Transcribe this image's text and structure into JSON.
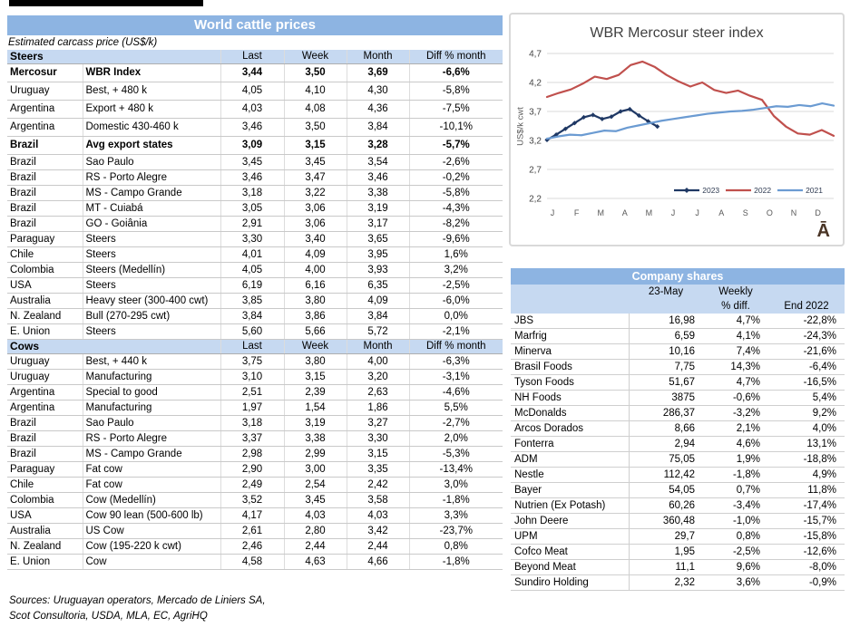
{
  "colors": {
    "header_blue": "#8DB4E2",
    "subheader_blue": "#C6D9F1",
    "series_2023": "#1F3864",
    "series_2022": "#C0504D",
    "series_2021": "#6B9BD2",
    "grid_gray": "#D9D9D9",
    "chart_text": "#595959",
    "watermark_brown": "#4A3526"
  },
  "cattle": {
    "title": "World cattle prices",
    "subtitle": "Estimated carcass price (US$/k)",
    "columns": [
      "Last",
      "Week",
      "Month",
      "Diff % month"
    ],
    "sections": [
      {
        "name": "Steers",
        "rows": [
          {
            "region": "Mercosur",
            "desc": "WBR Index",
            "last": "3,44",
            "week": "3,50",
            "month": "3,69",
            "diff": "-6,6%",
            "bold": true
          },
          {
            "region": "Uruguay",
            "desc": "Best, + 480 k",
            "last": "4,05",
            "week": "4,10",
            "month": "4,30",
            "diff": "-5,8%"
          },
          {
            "region": "Argentina",
            "desc": "Export + 480 k",
            "last": "4,03",
            "week": "4,08",
            "month": "4,36",
            "diff": "-7,5%"
          },
          {
            "region": "Argentina",
            "desc": "Domestic 430-460 k",
            "last": "3,46",
            "week": "3,50",
            "month": "3,84",
            "diff": "-10,1%"
          },
          {
            "region": "Brazil",
            "desc": "Avg export states",
            "last": "3,09",
            "week": "3,15",
            "month": "3,28",
            "diff": "-5,7%",
            "bold": true
          },
          {
            "region": "Brazil",
            "desc": "Sao Paulo",
            "last": "3,45",
            "week": "3,45",
            "month": "3,54",
            "diff": "-2,6%"
          },
          {
            "region": "Brazil",
            "desc": "RS - Porto Alegre",
            "last": "3,46",
            "week": "3,47",
            "month": "3,46",
            "diff": "-0,2%"
          },
          {
            "region": "Brazil",
            "desc": "MS - Campo Grande",
            "last": "3,18",
            "week": "3,22",
            "month": "3,38",
            "diff": "-5,8%"
          },
          {
            "region": "Brazil",
            "desc": "MT - Cuiabá",
            "last": "3,05",
            "week": "3,06",
            "month": "3,19",
            "diff": "-4,3%"
          },
          {
            "region": "Brazil",
            "desc": "GO - Goiânia",
            "last": "2,91",
            "week": "3,06",
            "month": "3,17",
            "diff": "-8,2%"
          },
          {
            "region": "Paraguay",
            "desc": "Steers",
            "last": "3,30",
            "week": "3,40",
            "month": "3,65",
            "diff": "-9,6%"
          },
          {
            "region": "Chile",
            "desc": "Steers",
            "last": "4,01",
            "week": "4,09",
            "month": "3,95",
            "diff": "1,6%"
          },
          {
            "region": "Colombia",
            "desc": "Steers (Medellín)",
            "last": "4,05",
            "week": "4,00",
            "month": "3,93",
            "diff": "3,2%"
          },
          {
            "region": "USA",
            "desc": "Steers",
            "last": "6,19",
            "week": "6,16",
            "month": "6,35",
            "diff": "-2,5%"
          },
          {
            "region": "Australia",
            "desc": "Heavy steer (300-400 cwt)",
            "last": "3,85",
            "week": "3,80",
            "month": "4,09",
            "diff": "-6,0%"
          },
          {
            "region": "N. Zealand",
            "desc": "Bull (270-295 cwt)",
            "last": "3,84",
            "week": "3,86",
            "month": "3,84",
            "diff": "0,0%"
          },
          {
            "region": "E. Union",
            "desc": "Steers",
            "last": "5,60",
            "week": "5,66",
            "month": "5,72",
            "diff": "-2,1%"
          }
        ]
      },
      {
        "name": "Cows",
        "rows": [
          {
            "region": "Uruguay",
            "desc": "Best, + 440 k",
            "last": "3,75",
            "week": "3,80",
            "month": "4,00",
            "diff": "-6,3%"
          },
          {
            "region": "Uruguay",
            "desc": "Manufacturing",
            "last": "3,10",
            "week": "3,15",
            "month": "3,20",
            "diff": "-3,1%"
          },
          {
            "region": "Argentina",
            "desc": "Special to good",
            "last": "2,51",
            "week": "2,39",
            "month": "2,63",
            "diff": "-4,6%"
          },
          {
            "region": "Argentina",
            "desc": "Manufacturing",
            "last": "1,97",
            "week": "1,54",
            "month": "1,86",
            "diff": "5,5%"
          },
          {
            "region": "Brazil",
            "desc": "Sao Paulo",
            "last": "3,18",
            "week": "3,19",
            "month": "3,27",
            "diff": "-2,7%"
          },
          {
            "region": "Brazil",
            "desc": "RS - Porto Alegre",
            "last": "3,37",
            "week": "3,38",
            "month": "3,30",
            "diff": "2,0%"
          },
          {
            "region": "Brazil",
            "desc": "MS - Campo Grande",
            "last": "2,98",
            "week": "2,99",
            "month": "3,15",
            "diff": "-5,3%"
          },
          {
            "region": "Paraguay",
            "desc": "Fat cow",
            "last": "2,90",
            "week": "3,00",
            "month": "3,35",
            "diff": "-13,4%"
          },
          {
            "region": "Chile",
            "desc": "Fat cow",
            "last": "2,49",
            "week": "2,54",
            "month": "2,42",
            "diff": "3,0%"
          },
          {
            "region": "Colombia",
            "desc": "Cow (Medellín)",
            "last": "3,52",
            "week": "3,45",
            "month": "3,58",
            "diff": "-1,8%"
          },
          {
            "region": "USA",
            "desc": "Cow 90 lean (500-600 lb)",
            "last": "4,17",
            "week": "4,03",
            "month": "4,03",
            "diff": "3,3%"
          },
          {
            "region": "Australia",
            "desc": "US Cow",
            "last": "2,61",
            "week": "2,80",
            "month": "3,42",
            "diff": "-23,7%"
          },
          {
            "region": "N. Zealand",
            "desc": "Cow (195-220 k cwt)",
            "last": "2,46",
            "week": "2,44",
            "month": "2,44",
            "diff": "0,8%"
          },
          {
            "region": "E. Union",
            "desc": "Cow",
            "last": "4,58",
            "week": "4,63",
            "month": "4,66",
            "diff": "-1,8%"
          }
        ]
      }
    ],
    "sources": [
      "Sources: Uruguayan operators, Mercado de Liniers SA,",
      "Scot Consultoria, USDA, MLA, EC, AgriHQ"
    ]
  },
  "chart_data": {
    "type": "line",
    "title": "WBR Mercosur steer index",
    "xlabel": "",
    "ylabel": "US$/k cwt",
    "ylim": [
      2.2,
      4.7
    ],
    "grid": true,
    "legend_position": "inside-bottom-right",
    "yticks": [
      {
        "v": 4.7,
        "label": "4,7"
      },
      {
        "v": 4.2,
        "label": "4,2"
      },
      {
        "v": 3.7,
        "label": "3,7"
      },
      {
        "v": 3.2,
        "label": "3,2"
      },
      {
        "v": 2.7,
        "label": "2,7"
      },
      {
        "v": 2.2,
        "label": "2,2"
      }
    ],
    "x_labels": [
      "J",
      "F",
      "M",
      "A",
      "M",
      "J",
      "J",
      "A",
      "S",
      "O",
      "N",
      "D"
    ],
    "series": [
      {
        "name": "2023",
        "color": "#1F3864",
        "markers": true,
        "span_frac": 0.385,
        "values": [
          3.21,
          3.3,
          3.4,
          3.5,
          3.6,
          3.64,
          3.57,
          3.61,
          3.7,
          3.74,
          3.63,
          3.53,
          3.44
        ]
      },
      {
        "name": "2022",
        "color": "#C0504D",
        "markers": false,
        "span_frac": 1,
        "values": [
          3.95,
          4.02,
          4.08,
          4.18,
          4.3,
          4.26,
          4.33,
          4.5,
          4.56,
          4.47,
          4.33,
          4.22,
          4.13,
          4.2,
          4.07,
          4.02,
          4.06,
          3.97,
          3.9,
          3.62,
          3.44,
          3.32,
          3.3,
          3.38,
          3.28
        ]
      },
      {
        "name": "2021",
        "color": "#6B9BD2",
        "markers": false,
        "span_frac": 1,
        "values": [
          3.23,
          3.27,
          3.3,
          3.29,
          3.33,
          3.37,
          3.36,
          3.42,
          3.46,
          3.5,
          3.54,
          3.57,
          3.6,
          3.63,
          3.66,
          3.68,
          3.7,
          3.71,
          3.73,
          3.76,
          3.79,
          3.78,
          3.81,
          3.79,
          3.84,
          3.8
        ]
      }
    ],
    "watermark": "Ā"
  },
  "shares": {
    "title": "Company shares",
    "headers": {
      "date": "23-May",
      "weekly1": "Weekly",
      "weekly2": "% diff.",
      "end": "End 2022"
    },
    "rows": [
      {
        "name": "JBS",
        "price": "16,98",
        "weekly": "4,7%",
        "end": "-22,8%"
      },
      {
        "name": "Marfrig",
        "price": "6,59",
        "weekly": "4,1%",
        "end": "-24,3%"
      },
      {
        "name": "Minerva",
        "price": "10,16",
        "weekly": "7,4%",
        "end": "-21,6%"
      },
      {
        "name": "Brasil Foods",
        "price": "7,75",
        "weekly": "14,3%",
        "end": "-6,4%"
      },
      {
        "name": "Tyson Foods",
        "price": "51,67",
        "weekly": "4,7%",
        "end": "-16,5%"
      },
      {
        "name": "NH Foods",
        "price": "3875",
        "weekly": "-0,6%",
        "end": "5,4%"
      },
      {
        "name": "McDonalds",
        "price": "286,37",
        "weekly": "-3,2%",
        "end": "9,2%"
      },
      {
        "name": "Arcos Dorados",
        "price": "8,66",
        "weekly": "2,1%",
        "end": "4,0%"
      },
      {
        "name": "Fonterra",
        "price": "2,94",
        "weekly": "4,6%",
        "end": "13,1%"
      },
      {
        "name": "ADM",
        "price": "75,05",
        "weekly": "1,9%",
        "end": "-18,8%"
      },
      {
        "name": "Nestle",
        "price": "112,42",
        "weekly": "-1,8%",
        "end": "4,9%"
      },
      {
        "name": "Bayer",
        "price": "54,05",
        "weekly": "0,7%",
        "end": "11,8%"
      },
      {
        "name": "Nutrien (Ex Potash)",
        "price": "60,26",
        "weekly": "-3,4%",
        "end": "-17,4%"
      },
      {
        "name": "John Deere",
        "price": "360,48",
        "weekly": "-1,0%",
        "end": "-15,7%"
      },
      {
        "name": "UPM",
        "price": "29,7",
        "weekly": "0,8%",
        "end": "-15,8%"
      },
      {
        "name": "Cofco Meat",
        "price": "1,95",
        "weekly": "-2,5%",
        "end": "-12,6%"
      },
      {
        "name": "Beyond Meat",
        "price": "11,1",
        "weekly": "9,6%",
        "end": "-8,0%"
      },
      {
        "name": "Sundiro Holding",
        "price": "2,32",
        "weekly": "3,6%",
        "end": "-0,9%"
      }
    ]
  }
}
